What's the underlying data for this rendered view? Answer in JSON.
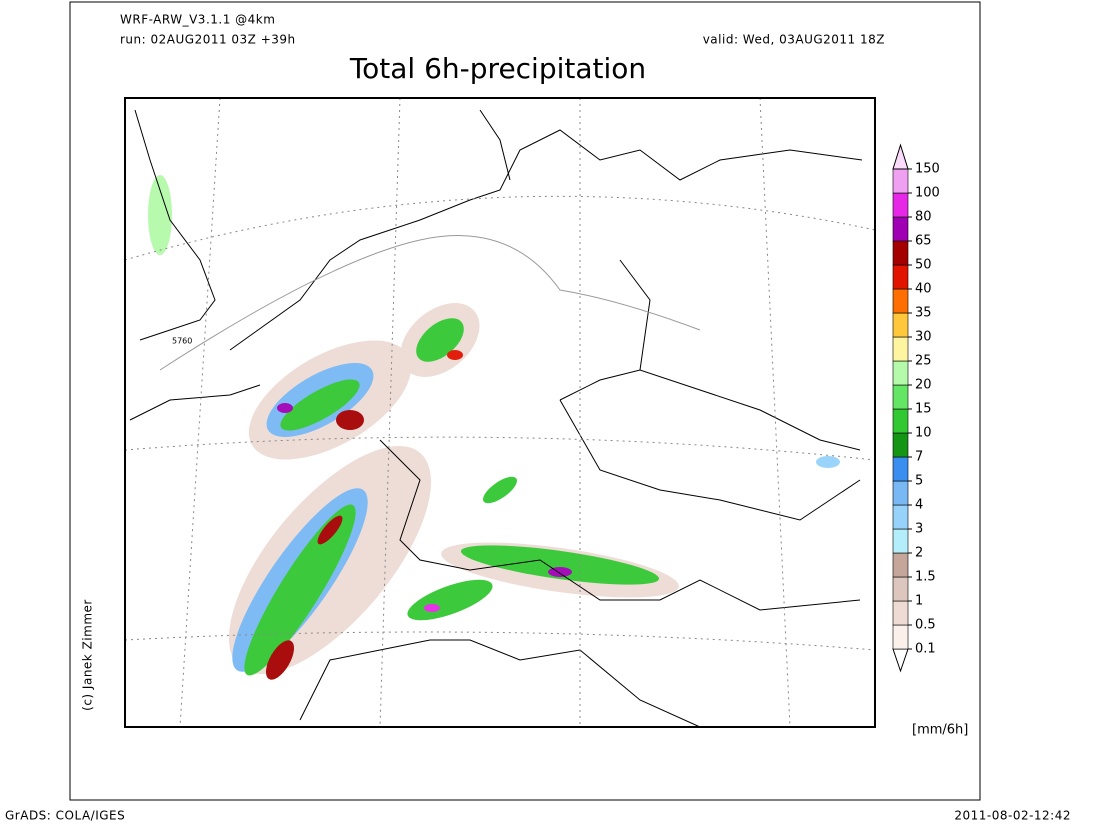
{
  "header": {
    "model": "WRF-ARW_V3.1.1 @4km",
    "run": "run: 02AUG2011 03Z +39h",
    "valid": "valid: Wed, 03AUG2011 18Z",
    "title": "Total 6h-precipitation"
  },
  "map": {
    "contour_label": "5760"
  },
  "colorbar": {
    "unit": "[mm/6h]",
    "levels": [
      0.1,
      0.5,
      1,
      1.5,
      2,
      3,
      4,
      5,
      7,
      10,
      15,
      20,
      25,
      30,
      35,
      40,
      50,
      65,
      80,
      100,
      150
    ],
    "colors": [
      "#fbf0ea",
      "#eedcd4",
      "#dcc6bd",
      "#c4a69a",
      "#b4eefa",
      "#96d2fa",
      "#78b8f5",
      "#3a8ef0",
      "#149614",
      "#32c832",
      "#64e664",
      "#b4faaa",
      "#fff5a0",
      "#ffc83c",
      "#ff6e00",
      "#e11400",
      "#a50000",
      "#a000b4",
      "#e628e6",
      "#f0a0f0",
      "#fadcfa"
    ]
  },
  "credit": "(c) Janek Zimmer",
  "footer": {
    "left": "GrADS: COLA/IGES",
    "right": "2011-08-02-12:42"
  }
}
